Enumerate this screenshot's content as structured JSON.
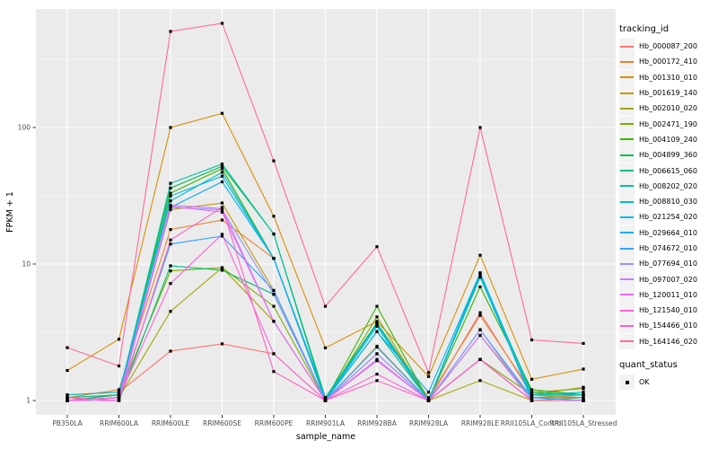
{
  "chart_data": {
    "type": "line",
    "title": "",
    "xlabel": "sample_name",
    "ylabel": "FPKM + 1",
    "y_scale": "log10",
    "y_ticks": [
      1,
      10,
      100
    ],
    "y_minor_ticks": [
      3.162,
      31.62,
      316.2
    ],
    "ylim": [
      0.85,
      730
    ],
    "grid": true,
    "legend_position": "right",
    "panel_bg": "#EBEBEB",
    "grid_color": "#FFFFFF",
    "point_marker": "black-square",
    "categories": [
      "PB350LA",
      "RRIM600LA",
      "RRIM600LE",
      "RRIM600SE",
      "RRIM600PE",
      "RRIM901LA",
      "RRIM928BA",
      "RRIM928LA",
      "RRIM928LE",
      "RRII105LA_Control",
      "RRII105LA_Stressed"
    ],
    "series": [
      {
        "name": "Hb_000087_200",
        "color": "#F8766D",
        "values": [
          1.1,
          1.15,
          2.3,
          2.6,
          2.2,
          1.0,
          2.2,
          1.0,
          4.4,
          1.1,
          1.05
        ]
      },
      {
        "name": "Hb_000172_410",
        "color": "#EA8331",
        "values": [
          1.05,
          1.2,
          17.9,
          21,
          11,
          1.05,
          3.7,
          1.05,
          4.2,
          1.15,
          1.22
        ]
      },
      {
        "name": "Hb_001310_010",
        "color": "#D89000",
        "values": [
          1.66,
          2.81,
          100,
          127,
          22.4,
          2.43,
          3.8,
          1.5,
          11.6,
          1.43,
          1.7
        ]
      },
      {
        "name": "Hb_001619_140",
        "color": "#C09B00",
        "values": [
          1.0,
          1.1,
          25,
          28,
          6.4,
          1.0,
          2.5,
          1.0,
          3.0,
          1.05,
          1.1
        ]
      },
      {
        "name": "Hb_002010_020",
        "color": "#A3A500",
        "values": [
          1.0,
          1.05,
          4.5,
          9.4,
          3.8,
          1.0,
          1.96,
          1.0,
          1.4,
          1.0,
          1.05
        ]
      },
      {
        "name": "Hb_002471_190",
        "color": "#7CAE00",
        "values": [
          1.05,
          1.1,
          8.9,
          9.4,
          4.9,
          1.0,
          4.1,
          1.0,
          2.0,
          1.1,
          1.25
        ]
      },
      {
        "name": "Hb_004109_240",
        "color": "#39B600",
        "values": [
          1.0,
          1.05,
          33,
          50,
          11,
          1.0,
          4.9,
          1.0,
          6.8,
          1.2,
          1.1
        ]
      },
      {
        "name": "Hb_004899_360",
        "color": "#00BB4E",
        "values": [
          1.0,
          1.1,
          36,
          52,
          16.6,
          1.05,
          3.7,
          1.0,
          8.3,
          1.15,
          1.1
        ]
      },
      {
        "name": "Hb_006615_060",
        "color": "#00BF7D",
        "values": [
          1.0,
          1.0,
          9.7,
          9.0,
          6.0,
          1.0,
          3.2,
          1.0,
          2.0,
          1.0,
          1.0
        ]
      },
      {
        "name": "Hb_008202_020",
        "color": "#00C1A3",
        "values": [
          1.05,
          1.1,
          39,
          54,
          16.6,
          1.0,
          3.7,
          1.0,
          8.6,
          1.1,
          1.15
        ]
      },
      {
        "name": "Hb_008810_030",
        "color": "#00BFC4",
        "values": [
          1.1,
          1.15,
          29,
          47,
          11,
          1.05,
          3.6,
          1.0,
          8.6,
          1.1,
          1.1
        ]
      },
      {
        "name": "Hb_021254_020",
        "color": "#00BAE0",
        "values": [
          1.0,
          1.05,
          31.5,
          44,
          11,
          1.0,
          3.5,
          1.0,
          8.0,
          1.05,
          1.05
        ]
      },
      {
        "name": "Hb_029664_010",
        "color": "#00B0F6",
        "values": [
          1.0,
          1.0,
          26,
          40,
          11,
          1.0,
          3.2,
          1.15,
          8.6,
          1.0,
          1.0
        ]
      },
      {
        "name": "Hb_074672_010",
        "color": "#35A2FF",
        "values": [
          1.0,
          1.05,
          14,
          16,
          6.4,
          1.0,
          2.46,
          1.0,
          3.3,
          1.05,
          1.0
        ]
      },
      {
        "name": "Hb_077694_010",
        "color": "#9590FF",
        "values": [
          1.0,
          1.0,
          26,
          25,
          6.0,
          1.0,
          2.2,
          1.0,
          3.3,
          1.0,
          1.0
        ]
      },
      {
        "name": "Hb_097007_020",
        "color": "#C77CFF",
        "values": [
          1.0,
          1.05,
          27,
          25.5,
          3.8,
          1.0,
          2.0,
          1.0,
          3.0,
          1.0,
          1.0
        ]
      },
      {
        "name": "Hb_120011_010",
        "color": "#E76BF3",
        "values": [
          1.0,
          1.0,
          26.5,
          24,
          3.8,
          1.0,
          1.96,
          1.0,
          2.0,
          1.0,
          1.0
        ]
      },
      {
        "name": "Hb_121540_010",
        "color": "#FA62DB",
        "values": [
          1.0,
          1.05,
          7.2,
          16.5,
          2.2,
          1.0,
          1.56,
          1.0,
          2.0,
          1.0,
          1.0
        ]
      },
      {
        "name": "Hb_154466_010",
        "color": "#FF61C3",
        "values": [
          1.05,
          1.0,
          15,
          26,
          1.63,
          1.0,
          1.4,
          1.0,
          2.0,
          1.0,
          1.0
        ]
      },
      {
        "name": "Hb_164146_020",
        "color": "#FF6A98",
        "values": [
          2.44,
          1.79,
          506,
          580,
          57,
          4.9,
          13.4,
          1.6,
          100,
          2.78,
          2.62
        ]
      }
    ]
  },
  "legend": {
    "tracking_title": "tracking_id",
    "quant_title": "quant_status",
    "quant_items": [
      {
        "label": "OK",
        "marker": "black-square"
      }
    ]
  },
  "panel": {
    "bg": "#EBEBEB",
    "grid_color": "#FFFFFF",
    "tick_color": "#333333",
    "tick_label_color": "#4D4D4D"
  }
}
